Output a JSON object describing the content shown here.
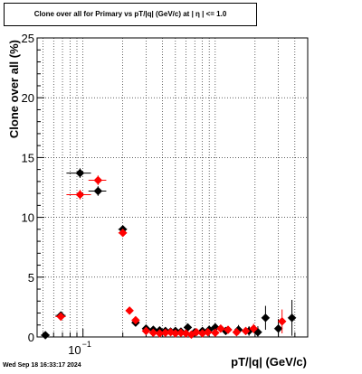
{
  "chart_data": {
    "type": "scatter",
    "title": "Clone  over all for Primary vs pT/|q| (GeV/c) at |  η | <= 1.0",
    "xlabel": "pT/|q| (GeV/c)",
    "ylabel": "Clone  over all (%)",
    "xscale": "log",
    "xlim": [
      0.045,
      5.0
    ],
    "ylim": [
      0,
      25
    ],
    "y_ticks": [
      0,
      5,
      10,
      15,
      20,
      25
    ],
    "x_tick_label": {
      "base": "10",
      "exponent": "−1",
      "value": 0.1
    },
    "grid": true,
    "series": [
      {
        "color": "#000000",
        "marker": "diamond",
        "points": [
          {
            "x": 0.052,
            "y": 0.15,
            "xerr": 0.004,
            "yerr": 0.1
          },
          {
            "x": 0.068,
            "y": 1.8,
            "xerr": 0.006,
            "yerr": 0.3
          },
          {
            "x": 0.095,
            "y": 13.7,
            "xerr": 0.02,
            "yerr": 0.4
          },
          {
            "x": 0.13,
            "y": 12.2,
            "xerr": 0.02,
            "yerr": 0.4
          },
          {
            "x": 0.2,
            "y": 9.0,
            "xerr": 0.015,
            "yerr": 0.3
          },
          {
            "x": 0.25,
            "y": 1.2,
            "xerr": 0.01,
            "yerr": 0.2
          },
          {
            "x": 0.3,
            "y": 0.7,
            "xerr": 0.01,
            "yerr": 0.15
          },
          {
            "x": 0.34,
            "y": 0.6,
            "xerr": 0.01,
            "yerr": 0.15
          },
          {
            "x": 0.38,
            "y": 0.55,
            "xerr": 0.01,
            "yerr": 0.15
          },
          {
            "x": 0.42,
            "y": 0.5,
            "xerr": 0.01,
            "yerr": 0.15
          },
          {
            "x": 0.46,
            "y": 0.45,
            "xerr": 0.01,
            "yerr": 0.15
          },
          {
            "x": 0.5,
            "y": 0.5,
            "xerr": 0.01,
            "yerr": 0.15
          },
          {
            "x": 0.55,
            "y": 0.45,
            "xerr": 0.01,
            "yerr": 0.2
          },
          {
            "x": 0.62,
            "y": 0.8,
            "xerr": 0.02,
            "yerr": 0.25
          },
          {
            "x": 0.7,
            "y": 0.4,
            "xerr": 0.02,
            "yerr": 0.2
          },
          {
            "x": 0.8,
            "y": 0.5,
            "xerr": 0.02,
            "yerr": 0.2
          },
          {
            "x": 0.9,
            "y": 0.6,
            "xerr": 0.02,
            "yerr": 0.25
          },
          {
            "x": 1.0,
            "y": 0.8,
            "xerr": 0.03,
            "yerr": 0.3
          },
          {
            "x": 1.2,
            "y": 0.5,
            "xerr": 0.03,
            "yerr": 0.3
          },
          {
            "x": 1.5,
            "y": 0.6,
            "xerr": 0.04,
            "yerr": 0.4
          },
          {
            "x": 1.8,
            "y": 0.5,
            "xerr": 0.05,
            "yerr": 0.4
          },
          {
            "x": 2.1,
            "y": 0.4,
            "xerr": 0.05,
            "yerr": 0.5
          },
          {
            "x": 2.4,
            "y": 1.6,
            "xerr": 0.06,
            "yerr": 1.0
          },
          {
            "x": 3.0,
            "y": 0.7,
            "xerr": 0.08,
            "yerr": 0.8
          },
          {
            "x": 3.8,
            "y": 1.6,
            "xerr": 0.1,
            "yerr": 1.5
          }
        ]
      },
      {
        "color": "#ff0000",
        "marker": "diamond",
        "points": [
          {
            "x": 0.068,
            "y": 1.7,
            "xerr": 0.006,
            "yerr": 0.3
          },
          {
            "x": 0.095,
            "y": 11.9,
            "xerr": 0.02,
            "yerr": 0.4
          },
          {
            "x": 0.13,
            "y": 13.1,
            "xerr": 0.02,
            "yerr": 0.4
          },
          {
            "x": 0.2,
            "y": 8.7,
            "xerr": 0.015,
            "yerr": 0.3
          },
          {
            "x": 0.225,
            "y": 2.2,
            "xerr": 0.008,
            "yerr": 0.2
          },
          {
            "x": 0.25,
            "y": 1.4,
            "xerr": 0.01,
            "yerr": 0.2
          },
          {
            "x": 0.3,
            "y": 0.5,
            "xerr": 0.01,
            "yerr": 0.15
          },
          {
            "x": 0.34,
            "y": 0.35,
            "xerr": 0.01,
            "yerr": 0.15
          },
          {
            "x": 0.38,
            "y": 0.3,
            "xerr": 0.01,
            "yerr": 0.15
          },
          {
            "x": 0.42,
            "y": 0.35,
            "xerr": 0.01,
            "yerr": 0.15
          },
          {
            "x": 0.46,
            "y": 0.4,
            "xerr": 0.01,
            "yerr": 0.15
          },
          {
            "x": 0.5,
            "y": 0.3,
            "xerr": 0.01,
            "yerr": 0.15
          },
          {
            "x": 0.55,
            "y": 0.35,
            "xerr": 0.01,
            "yerr": 0.15
          },
          {
            "x": 0.6,
            "y": 0.3,
            "xerr": 0.01,
            "yerr": 0.15
          },
          {
            "x": 0.66,
            "y": 0.2,
            "xerr": 0.02,
            "yerr": 0.15
          },
          {
            "x": 0.72,
            "y": 0.4,
            "xerr": 0.02,
            "yerr": 0.2
          },
          {
            "x": 0.8,
            "y": 0.3,
            "xerr": 0.02,
            "yerr": 0.2
          },
          {
            "x": 0.88,
            "y": 0.4,
            "xerr": 0.02,
            "yerr": 0.2
          },
          {
            "x": 1.0,
            "y": 0.35,
            "xerr": 0.03,
            "yerr": 0.2
          },
          {
            "x": 1.1,
            "y": 0.7,
            "xerr": 0.03,
            "yerr": 0.3
          },
          {
            "x": 1.25,
            "y": 0.6,
            "xerr": 0.03,
            "yerr": 0.3
          },
          {
            "x": 1.45,
            "y": 0.4,
            "xerr": 0.04,
            "yerr": 0.3
          },
          {
            "x": 1.7,
            "y": 0.5,
            "xerr": 0.04,
            "yerr": 0.3
          },
          {
            "x": 1.95,
            "y": 0.7,
            "xerr": 0.05,
            "yerr": 0.4
          },
          {
            "x": 3.2,
            "y": 1.3,
            "xerr": 0.08,
            "yerr": 1.0
          }
        ]
      }
    ]
  },
  "footer": {
    "timestamp": "Wed Sep 18 16:33:17 2024"
  }
}
